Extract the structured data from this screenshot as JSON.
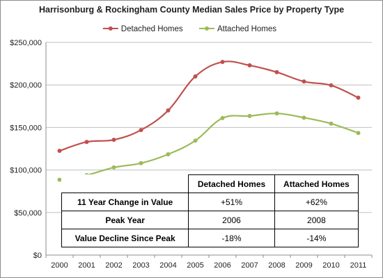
{
  "chart_data": {
    "type": "line",
    "title": "Harrisonburg & Rockingham County  Median Sales Price by  Property Type",
    "x": [
      "2000",
      "2001",
      "2002",
      "2003",
      "2004",
      "2005",
      "2006",
      "2007",
      "2008",
      "2009",
      "2010",
      "2011"
    ],
    "series": [
      {
        "name": "Detached Homes",
        "color": "#c0504d",
        "values": [
          122500,
          133000,
          135500,
          147000,
          170000,
          210000,
          227000,
          223000,
          215000,
          204000,
          199500,
          185000
        ]
      },
      {
        "name": "Attached Homes",
        "color": "#9bbb59",
        "values": [
          88500,
          94000,
          103000,
          108000,
          118500,
          134500,
          161000,
          163500,
          166500,
          161500,
          154500,
          143500
        ]
      }
    ],
    "yticks": [
      "$0",
      "$50,000",
      "$100,000",
      "$150,000",
      "$200,000",
      "$250,000"
    ],
    "ylim": [
      0,
      250000
    ],
    "grid": true,
    "legend_position": "top",
    "smooth": true
  },
  "table": {
    "headers": [
      "Detached Homes",
      "Attached Homes"
    ],
    "rows": [
      {
        "label": "11 Year Change in Value",
        "detached": "+51%",
        "attached": "+62%"
      },
      {
        "label": "Peak Year",
        "detached": "2006",
        "attached": "2008"
      },
      {
        "label": "Value Decline Since Peak",
        "detached": "-18%",
        "attached": "-14%"
      }
    ]
  }
}
